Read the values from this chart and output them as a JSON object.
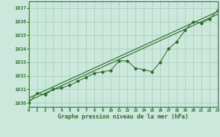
{
  "title": "Graphe pression niveau de la mer (hPa)",
  "bg_color": "#cce8dc",
  "grid_color": "#a8d4c0",
  "line_color": "#2d6e2d",
  "text_color": "#2d6e2d",
  "ylabel_values": [
    1030,
    1031,
    1032,
    1033,
    1034,
    1035,
    1036,
    1037
  ],
  "xlim": [
    0,
    23
  ],
  "ylim": [
    1029.7,
    1037.5
  ],
  "series1_x": [
    0,
    1,
    2,
    3,
    4,
    5,
    6,
    7,
    8,
    9,
    10,
    11,
    12,
    13,
    14,
    15,
    16,
    17,
    18,
    19,
    20,
    21,
    22,
    23
  ],
  "series1_y": [
    1030.0,
    1030.7,
    1030.6,
    1031.0,
    1031.1,
    1031.3,
    1031.6,
    1031.9,
    1032.2,
    1032.3,
    1032.4,
    1033.1,
    1033.1,
    1032.55,
    1032.45,
    1032.3,
    1033.0,
    1034.0,
    1034.5,
    1035.35,
    1036.0,
    1035.9,
    1036.2,
    1036.85
  ],
  "series2_x": [
    0,
    23
  ],
  "series2_y": [
    1030.15,
    1036.55
  ],
  "series3_x": [
    0,
    23
  ],
  "series3_y": [
    1030.35,
    1036.75
  ]
}
